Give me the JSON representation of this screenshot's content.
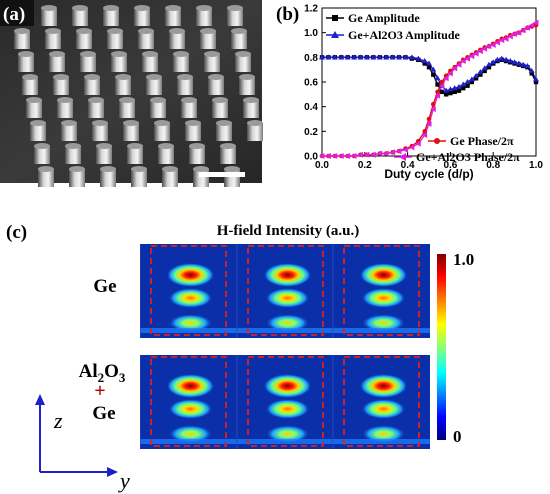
{
  "panels": {
    "a": {
      "label": "(a)"
    },
    "b": {
      "label": "(b)"
    },
    "c": {
      "label": "(c)"
    }
  },
  "chart_data": [
    {
      "panel": "b",
      "type": "line",
      "xlabel": "Duty cycle (d/p)",
      "ylabel": "",
      "xlim": [
        0.0,
        1.0
      ],
      "ylim": [
        0.0,
        1.2
      ],
      "xticks": [
        "0.0",
        "0.2",
        "0.4",
        "0.6",
        "0.8",
        "1.0"
      ],
      "yticks": [
        "0.0",
        "0.2",
        "0.4",
        "0.6",
        "0.8",
        "1.0",
        "1.2"
      ],
      "grid": false,
      "legends": {
        "top_left": [
          "Ge Amplitude",
          "Ge+Al2O3 Amplitude"
        ],
        "bottom_right": [
          "Ge Phase/2π",
          "Ge+Al2O3 Phase/2π"
        ]
      },
      "series": [
        {
          "name": "Ge Amplitude",
          "color": "#000000",
          "marker": "square",
          "x": [
            0.0,
            0.03,
            0.06,
            0.09,
            0.12,
            0.15,
            0.18,
            0.21,
            0.24,
            0.27,
            0.3,
            0.33,
            0.36,
            0.39,
            0.42,
            0.45,
            0.48,
            0.5,
            0.52,
            0.54,
            0.56,
            0.58,
            0.6,
            0.62,
            0.64,
            0.66,
            0.68,
            0.7,
            0.72,
            0.74,
            0.76,
            0.78,
            0.8,
            0.82,
            0.84,
            0.86,
            0.88,
            0.9,
            0.92,
            0.94,
            0.96,
            0.98,
            1.0
          ],
          "y": [
            0.8,
            0.8,
            0.8,
            0.8,
            0.8,
            0.8,
            0.8,
            0.8,
            0.8,
            0.8,
            0.8,
            0.8,
            0.8,
            0.8,
            0.79,
            0.78,
            0.75,
            0.72,
            0.66,
            0.58,
            0.52,
            0.5,
            0.51,
            0.52,
            0.53,
            0.55,
            0.57,
            0.6,
            0.63,
            0.66,
            0.69,
            0.72,
            0.75,
            0.77,
            0.78,
            0.77,
            0.76,
            0.75,
            0.74,
            0.73,
            0.72,
            0.67,
            0.6
          ]
        },
        {
          "name": "Ge+Al2O3 Amplitude",
          "color": "#1f1fcc",
          "marker": "triangle",
          "x": [
            0.0,
            0.03,
            0.06,
            0.09,
            0.12,
            0.15,
            0.18,
            0.21,
            0.24,
            0.27,
            0.3,
            0.33,
            0.36,
            0.39,
            0.42,
            0.45,
            0.48,
            0.5,
            0.52,
            0.54,
            0.56,
            0.58,
            0.6,
            0.62,
            0.64,
            0.66,
            0.68,
            0.7,
            0.72,
            0.74,
            0.76,
            0.78,
            0.8,
            0.82,
            0.84,
            0.86,
            0.88,
            0.9,
            0.92,
            0.94,
            0.96,
            0.98,
            1.0
          ],
          "y": [
            0.8,
            0.8,
            0.8,
            0.8,
            0.8,
            0.8,
            0.8,
            0.8,
            0.8,
            0.8,
            0.8,
            0.8,
            0.8,
            0.8,
            0.8,
            0.79,
            0.77,
            0.75,
            0.7,
            0.63,
            0.57,
            0.53,
            0.54,
            0.55,
            0.56,
            0.58,
            0.6,
            0.62,
            0.65,
            0.68,
            0.71,
            0.74,
            0.76,
            0.78,
            0.79,
            0.78,
            0.77,
            0.76,
            0.75,
            0.74,
            0.73,
            0.69,
            0.62
          ]
        },
        {
          "name": "Ge Phase/2π",
          "color": "#e01010",
          "marker": "circle",
          "x": [
            0.0,
            0.03,
            0.06,
            0.09,
            0.12,
            0.15,
            0.18,
            0.21,
            0.24,
            0.27,
            0.3,
            0.33,
            0.36,
            0.39,
            0.42,
            0.45,
            0.48,
            0.5,
            0.52,
            0.54,
            0.56,
            0.58,
            0.6,
            0.62,
            0.64,
            0.66,
            0.68,
            0.7,
            0.72,
            0.74,
            0.76,
            0.78,
            0.8,
            0.82,
            0.84,
            0.86,
            0.88,
            0.9,
            0.92,
            0.94,
            0.96,
            0.98,
            1.0
          ],
          "y": [
            0.0,
            0.0,
            0.0,
            0.0,
            0.0,
            0.0,
            0.01,
            0.01,
            0.01,
            0.02,
            0.02,
            0.03,
            0.04,
            0.06,
            0.08,
            0.12,
            0.2,
            0.3,
            0.42,
            0.52,
            0.6,
            0.65,
            0.69,
            0.72,
            0.75,
            0.78,
            0.8,
            0.82,
            0.84,
            0.86,
            0.88,
            0.89,
            0.91,
            0.93,
            0.95,
            0.96,
            0.98,
            0.99,
            1.0,
            1.02,
            1.04,
            1.05,
            1.06
          ]
        },
        {
          "name": "Ge+Al2O3 Phase/2π",
          "color": "#e020e0",
          "marker": "triangle-left",
          "x": [
            0.0,
            0.03,
            0.06,
            0.09,
            0.12,
            0.15,
            0.18,
            0.21,
            0.24,
            0.27,
            0.3,
            0.33,
            0.36,
            0.39,
            0.42,
            0.45,
            0.48,
            0.5,
            0.52,
            0.54,
            0.56,
            0.58,
            0.6,
            0.62,
            0.64,
            0.66,
            0.68,
            0.7,
            0.72,
            0.74,
            0.76,
            0.78,
            0.8,
            0.82,
            0.84,
            0.86,
            0.88,
            0.9,
            0.92,
            0.94,
            0.96,
            0.98,
            1.0
          ],
          "y": [
            0.0,
            0.0,
            0.0,
            0.0,
            0.0,
            0.0,
            0.01,
            0.01,
            0.01,
            0.02,
            0.02,
            0.03,
            0.04,
            0.05,
            0.07,
            0.1,
            0.17,
            0.26,
            0.38,
            0.49,
            0.57,
            0.63,
            0.67,
            0.71,
            0.74,
            0.77,
            0.79,
            0.81,
            0.83,
            0.85,
            0.87,
            0.89,
            0.9,
            0.92,
            0.94,
            0.95,
            0.97,
            0.99,
            1.0,
            1.02,
            1.04,
            1.06,
            1.08
          ]
        }
      ]
    },
    {
      "panel": "c",
      "type": "heatmap",
      "title": "H-field Intensity (a.u.)",
      "colorbar": {
        "min_label": "0",
        "max_label": "1.0",
        "colormap": "jet"
      },
      "rows": [
        {
          "label": "Ge",
          "label_parts": [
            "Ge"
          ]
        },
        {
          "label": "Al2O3 + Ge",
          "label_parts": [
            "Al2O3",
            "+",
            "Ge"
          ]
        }
      ],
      "axes": {
        "vertical": "z",
        "horizontal": "y"
      }
    }
  ]
}
